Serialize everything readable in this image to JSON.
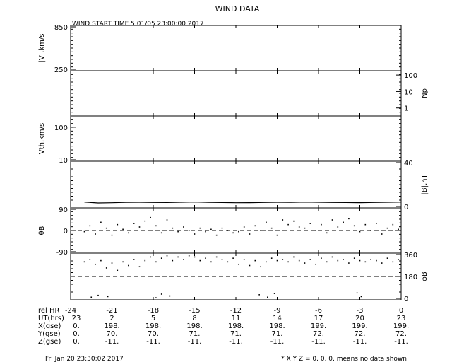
{
  "header": {
    "title": "WIND DATA",
    "start_time": "WIND START TIME   5 01/05 23:00:00 2017"
  },
  "footer": {
    "timestamp": "Fri Jan 20 23:30:02 2017",
    "note": "* X Y Z = 0. 0. 0. means no data shown"
  },
  "chart_data": {
    "type": "line",
    "panels": [
      {
        "id": "speed",
        "label": "|V|,km/s",
        "label_side": "left",
        "scale": "linear",
        "ylim": [
          250,
          850
        ],
        "ticks": [
          {
            "v": 850,
            "t": "850"
          },
          {
            "v": 250,
            "t": "250"
          }
        ],
        "tick_side": "left",
        "series": []
      },
      {
        "id": "density",
        "label": "Np",
        "label_side": "right",
        "scale": "log",
        "ylim": [
          0.4,
          150
        ],
        "ticks": [
          {
            "v": 100,
            "t": "100"
          },
          {
            "v": 10,
            "t": "10"
          },
          {
            "v": 1,
            "t": "1"
          }
        ],
        "tick_side": "right",
        "series": []
      },
      {
        "id": "thermal",
        "label": "Vth,km/s",
        "label_side": "left",
        "scale": "log",
        "ylim": [
          10,
          200
        ],
        "ticks": [
          {
            "v": 100,
            "t": "100"
          },
          {
            "v": 10,
            "t": "10"
          }
        ],
        "tick_side": "left",
        "series": []
      },
      {
        "id": "bmag",
        "label": "|B|,nT",
        "label_side": "right",
        "scale": "linear",
        "ylim": [
          0,
          40
        ],
        "ticks": [
          {
            "v": 40,
            "t": "40"
          },
          {
            "v": 0,
            "t": "0"
          }
        ],
        "tick_side": "right",
        "series": [
          {
            "style": "line",
            "x": [
              -23.0,
              -22.0,
              -21.0,
              -20.0,
              -19.0,
              -18.0,
              -17.0,
              -16.0,
              -15.0,
              -14.0,
              -13.0,
              -12.0,
              -11.0,
              -10.0,
              -9.0,
              -8.0,
              -7.0,
              -6.0,
              -5.0,
              -4.0,
              -3.0,
              -2.0,
              -1.0,
              0.0
            ],
            "y": [
              4.0,
              3.2,
              3.4,
              3.8,
              3.9,
              3.7,
              3.6,
              3.9,
              4.1,
              3.8,
              3.6,
              3.4,
              3.5,
              3.7,
              3.9,
              3.8,
              4.0,
              3.9,
              3.7,
              3.6,
              3.5,
              3.7,
              3.9,
              4.0
            ]
          }
        ]
      },
      {
        "id": "theta",
        "label": "θB",
        "label_side": "left",
        "scale": "linear",
        "ylim": [
          -90,
          90
        ],
        "ticks": [
          {
            "v": 90,
            "t": "90"
          },
          {
            "v": 0,
            "t": "0"
          },
          {
            "v": -90,
            "t": "-90"
          }
        ],
        "tick_side": "left",
        "dashed_line": 0,
        "series": [
          {
            "style": "dots",
            "x": [
              -23.0,
              -22.6,
              -22.2,
              -21.8,
              -21.4,
              -21.0,
              -20.6,
              -20.2,
              -19.8,
              -19.4,
              -19.0,
              -18.6,
              -18.2,
              -17.8,
              -17.4,
              -17.0,
              -16.6,
              -16.2,
              -15.8,
              -15.4,
              -15.0,
              -14.6,
              -14.2,
              -13.8,
              -13.4,
              -13.0,
              -12.6,
              -12.2,
              -11.8,
              -11.4,
              -11.0,
              -10.6,
              -10.2,
              -9.8,
              -9.4,
              -9.0,
              -8.6,
              -8.2,
              -7.8,
              -7.4,
              -7.0,
              -6.6,
              -6.2,
              -5.8,
              -5.4,
              -5.0,
              -4.6,
              -4.2,
              -3.8,
              -3.4,
              -3.0,
              -2.6,
              -2.2,
              -1.8,
              -1.4,
              -1.0,
              -0.6,
              -0.2
            ],
            "y": [
              -5,
              20,
              -15,
              35,
              10,
              -20,
              25,
              5,
              -10,
              30,
              15,
              40,
              55,
              20,
              -10,
              45,
              10,
              -5,
              15,
              0,
              -15,
              10,
              -5,
              5,
              -20,
              10,
              0,
              -10,
              -5,
              15,
              -15,
              20,
              0,
              35,
              10,
              -20,
              45,
              25,
              40,
              15,
              10,
              30,
              0,
              25,
              -10,
              45,
              15,
              35,
              50,
              20,
              -5,
              25,
              0,
              30,
              -15,
              10,
              25,
              5
            ]
          }
        ]
      },
      {
        "id": "phi",
        "label": "φB",
        "label_side": "right",
        "scale": "linear",
        "ylim": [
          0,
          360
        ],
        "ticks": [
          {
            "v": 360,
            "t": "360"
          },
          {
            "v": 180,
            "t": "180"
          },
          {
            "v": 0,
            "t": "0"
          }
        ],
        "tick_side": "right",
        "dashed_line": 180,
        "series": [
          {
            "style": "dots",
            "x": [
              -23.0,
              -22.6,
              -22.2,
              -21.8,
              -21.4,
              -21.0,
              -20.6,
              -20.2,
              -19.8,
              -19.4,
              -19.0,
              -18.6,
              -18.2,
              -17.8,
              -17.4,
              -17.0,
              -16.6,
              -16.2,
              -15.8,
              -15.4,
              -15.0,
              -14.6,
              -14.2,
              -13.8,
              -13.4,
              -13.0,
              -12.6,
              -12.2,
              -11.8,
              -11.4,
              -11.0,
              -10.6,
              -10.2,
              -9.8,
              -9.4,
              -9.0,
              -8.6,
              -8.2,
              -7.8,
              -7.4,
              -7.0,
              -6.6,
              -6.2,
              -5.8,
              -5.4,
              -5.0,
              -4.6,
              -4.2,
              -3.8,
              -3.4,
              -3.0,
              -2.6,
              -2.2,
              -1.8,
              -1.4,
              -1.0,
              -0.6,
              -0.2
            ],
            "y": [
              300,
              320,
              280,
              310,
              250,
              290,
              230,
              300,
              270,
              320,
              260,
              310,
              340,
              300,
              330,
              350,
              310,
              340,
              320,
              350,
              340,
              310,
              330,
              300,
              340,
              320,
              300,
              330,
              280,
              320,
              270,
              310,
              260,
              300,
              330,
              310,
              320,
              300,
              340,
              310,
              290,
              320,
              280,
              330,
              300,
              340,
              310,
              320,
              290,
              330,
              310,
              300,
              320,
              310,
              290,
              330,
              300,
              320
            ]
          },
          {
            "style": "dots",
            "x": [
              -22.5,
              -22.0,
              -21.3,
              -17.8,
              -17.4,
              -16.8,
              -10.3,
              -9.7,
              -9.2,
              -3.2,
              -2.9
            ],
            "y": [
              10,
              25,
              15,
              5,
              35,
              20,
              30,
              10,
              40,
              45,
              15
            ]
          }
        ]
      }
    ],
    "x_axis": {
      "xlim": [
        -24,
        0
      ],
      "xlabel": "rel HR",
      "ticks": [
        -24,
        -21,
        -18,
        -15,
        -12,
        -9,
        -6,
        -3,
        0
      ],
      "tick_labels": [
        "-24",
        "-21",
        "-18",
        "-15",
        "-12",
        "-9",
        "-6",
        "-3",
        "0"
      ]
    },
    "table_rows": [
      {
        "label": "UT(hrs)",
        "values": [
          "23",
          "2",
          "5",
          "8",
          "11",
          "14",
          "17",
          "20",
          "23"
        ]
      },
      {
        "label": "X(gse)",
        "values": [
          "0.",
          "198.",
          "198.",
          "198.",
          "198.",
          "198.",
          "199.",
          "199.",
          "199."
        ]
      },
      {
        "label": "Y(gse)",
        "values": [
          "0.",
          "70.",
          "70.",
          "71.",
          "71.",
          "71.",
          "72.",
          "72.",
          "72."
        ]
      },
      {
        "label": "Z(gse)",
        "values": [
          "0.",
          "-11.",
          "-11.",
          "-11.",
          "-11.",
          "-11.",
          "-11.",
          "-11.",
          "-11."
        ]
      }
    ]
  }
}
